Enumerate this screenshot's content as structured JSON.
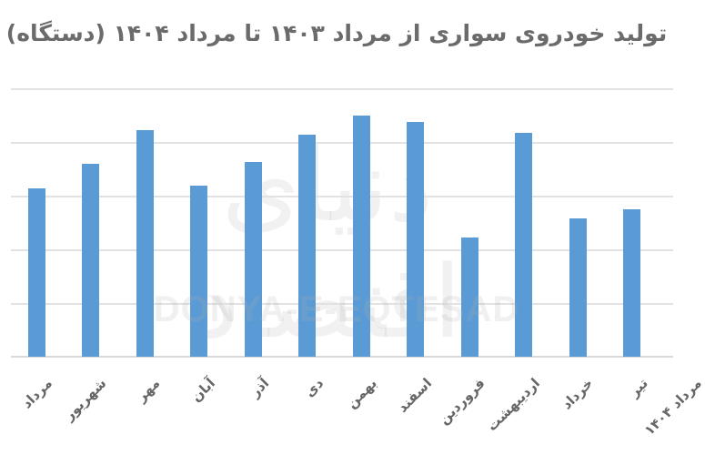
{
  "title": "تولید خودروی سواری از مرداد ۱۴۰۳ تا مرداد ۱۴۰۴ (دستگاه)",
  "watermark": {
    "english": "DONYA-E-EQTESAD",
    "persian": "دنیای اقتصاد"
  },
  "colors": {
    "bar": "#5b9bd5",
    "title": "#6b6b6b",
    "gridline": "#e2e2e2",
    "label": "#666666"
  },
  "chart_data": {
    "type": "bar",
    "title": "تولید خودروی سواری از مرداد ۱۴۰۳ تا مرداد ۱۴۰۴ (دستگاه)",
    "xlabel": "",
    "ylabel": "",
    "y_units_note": "No y-axis tick labels visible; values in gridline units (5 gridlines above baseline)",
    "ylim": [
      0,
      5
    ],
    "grid": true,
    "legend": null,
    "categories": [
      "مرداد",
      "شهریور",
      "مهر",
      "آبان",
      "آذر",
      "دی",
      "بهمن",
      "اسفند",
      "فروردین",
      "اردیبهشت",
      "خرداد",
      "تیر",
      "مرداد ۱۴۰۴"
    ],
    "values": [
      3.14,
      3.59,
      4.22,
      3.19,
      3.63,
      4.14,
      4.49,
      4.37,
      2.22,
      4.17,
      2.58,
      2.75,
      null
    ]
  },
  "bars": [
    {
      "label": "مرداد",
      "value": 3.14,
      "x": 31
    },
    {
      "label": "شهریور",
      "value": 3.59,
      "x": 90
    },
    {
      "label": "مهر",
      "value": 4.22,
      "x": 150
    },
    {
      "label": "آبان",
      "value": 3.19,
      "x": 209
    },
    {
      "label": "آذر",
      "value": 3.63,
      "x": 269
    },
    {
      "label": "دی",
      "value": 4.14,
      "x": 328
    },
    {
      "label": "بهمن",
      "value": 4.49,
      "x": 388
    },
    {
      "label": "اسفند",
      "value": 4.37,
      "x": 447
    },
    {
      "label": "فروردین",
      "value": 2.22,
      "x": 507
    },
    {
      "label": "اردیبهشت",
      "value": 4.17,
      "x": 566
    },
    {
      "label": "خرداد",
      "value": 2.58,
      "x": 626
    },
    {
      "label": "تیر",
      "value": 2.75,
      "x": 685
    }
  ],
  "xlabels": [
    {
      "text": "مرداد",
      "x": 42
    },
    {
      "text": "شهریور",
      "x": 102
    },
    {
      "text": "مهر",
      "x": 161
    },
    {
      "text": "آبان",
      "x": 221
    },
    {
      "text": "آذر",
      "x": 280
    },
    {
      "text": "دی",
      "x": 340
    },
    {
      "text": "بهمن",
      "x": 399
    },
    {
      "text": "اسفند",
      "x": 459
    },
    {
      "text": "فروردین",
      "x": 518
    },
    {
      "text": "اردیبهشت",
      "x": 578
    },
    {
      "text": "خرداد",
      "x": 637
    },
    {
      "text": "تیر",
      "x": 697
    },
    {
      "text": "مرداد ۱۴۰۴",
      "x": 756
    }
  ]
}
